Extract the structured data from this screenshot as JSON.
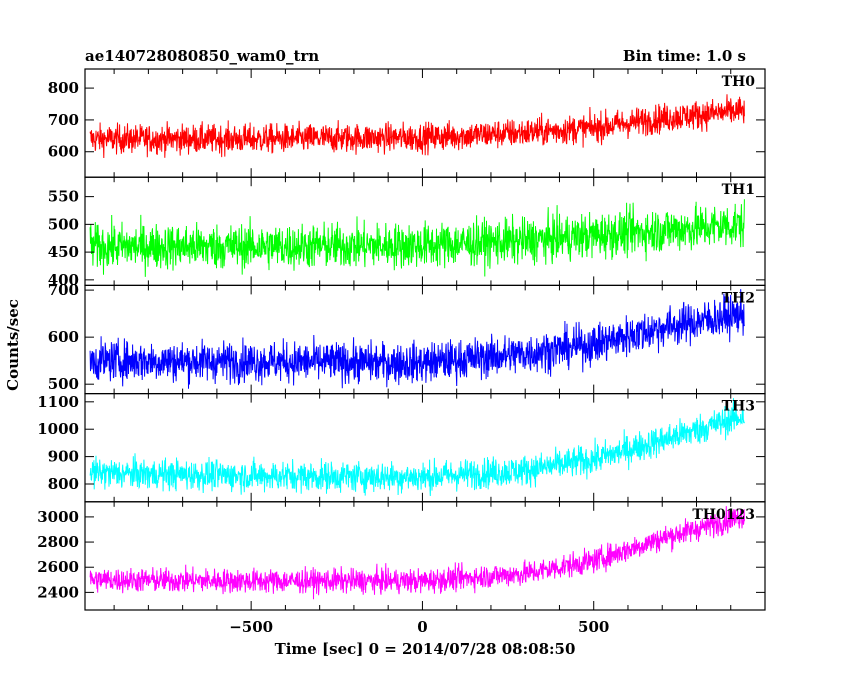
{
  "header": {
    "title": "ae140728080850_wam0_trn",
    "bin_time": "Bin time: 1.0 s"
  },
  "chart_data": {
    "type": "line",
    "xlabel": "Time [sec] 0 = 2014/07/28 08:08:50",
    "ylabel": "Counts/sec",
    "xlim": [
      -985,
      1000
    ],
    "xticks": [
      -500,
      0,
      500
    ],
    "xtick_labels": [
      "−500",
      "0",
      "500"
    ],
    "panels": [
      {
        "name": "TH0",
        "color": "#ff0000",
        "ylim": [
          520,
          860
        ],
        "yticks": [
          600,
          700,
          800
        ],
        "ytick_labels": [
          "600",
          "700",
          "800"
        ],
        "trend_x": [
          -970,
          -500,
          0,
          300,
          500,
          700,
          940
        ],
        "trend_y": [
          640,
          640,
          645,
          660,
          675,
          705,
          730
        ],
        "noise_amp": 45
      },
      {
        "name": "TH1",
        "color": "#00ff00",
        "ylim": [
          390,
          585
        ],
        "yticks": [
          400,
          450,
          500,
          550
        ],
        "ytick_labels": [
          "400",
          "450",
          "500",
          "550"
        ],
        "trend_x": [
          -970,
          -500,
          0,
          300,
          600,
          940
        ],
        "trend_y": [
          460,
          460,
          462,
          470,
          485,
          500
        ],
        "noise_amp": 40
      },
      {
        "name": "TH2",
        "color": "#0000ff",
        "ylim": [
          480,
          710
        ],
        "yticks": [
          500,
          600,
          700
        ],
        "ytick_labels": [
          "500",
          "600",
          "700"
        ],
        "trend_x": [
          -970,
          -500,
          0,
          300,
          500,
          700,
          940
        ],
        "trend_y": [
          550,
          548,
          545,
          565,
          585,
          620,
          650
        ],
        "noise_amp": 42
      },
      {
        "name": "TH3",
        "color": "#00ffff",
        "ylim": [
          735,
          1130
        ],
        "yticks": [
          800,
          900,
          1000,
          1100
        ],
        "ytick_labels": [
          "800",
          "900",
          "1000",
          "1100"
        ],
        "trend_x": [
          -970,
          -500,
          0,
          300,
          500,
          700,
          940
        ],
        "trend_y": [
          840,
          830,
          825,
          850,
          890,
          960,
          1050
        ],
        "noise_amp": 55
      },
      {
        "name": "TH0123",
        "color": "#ff00ff",
        "ylim": [
          2260,
          3120
        ],
        "yticks": [
          2400,
          2600,
          2800,
          3000
        ],
        "ytick_labels": [
          "2400",
          "2600",
          "2800",
          "3000"
        ],
        "trend_x": [
          -970,
          -500,
          0,
          300,
          500,
          700,
          940
        ],
        "trend_y": [
          2500,
          2490,
          2490,
          2550,
          2650,
          2830,
          3010
        ],
        "noise_amp": 95
      }
    ]
  }
}
